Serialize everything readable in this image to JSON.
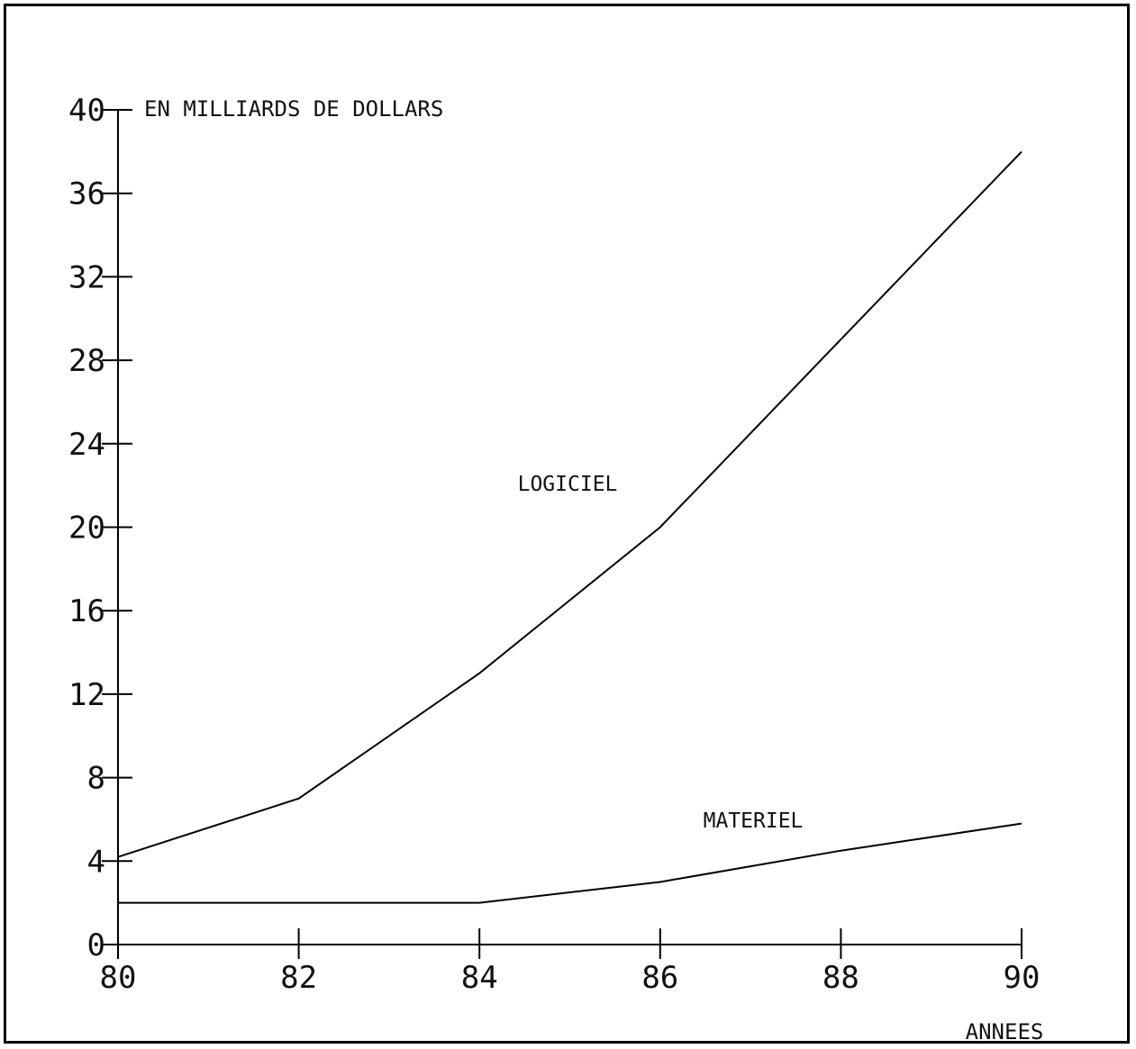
{
  "chart_data": {
    "type": "line",
    "ylabel": "EN MILLIARDS DE DOLLARS",
    "xlabel": "ANNEES",
    "x": [
      80,
      82,
      84,
      86,
      88,
      90
    ],
    "x_ticks": [
      "80",
      "82",
      "84",
      "86",
      "88",
      "90"
    ],
    "y_ticks": [
      "0",
      "4",
      "8",
      "12",
      "16",
      "20",
      "24",
      "28",
      "32",
      "36",
      "40"
    ],
    "xlim": [
      80,
      90
    ],
    "ylim": [
      0,
      40
    ],
    "grid": false,
    "series": [
      {
        "name": "LOGICIEL",
        "x": [
          80,
          82,
          84,
          86,
          88,
          90
        ],
        "values": [
          4.2,
          7,
          13,
          20,
          29,
          38
        ]
      },
      {
        "name": "MATERIEL",
        "x": [
          80,
          82,
          84,
          86,
          88,
          90
        ],
        "values": [
          2,
          2,
          2,
          3,
          4.5,
          5.8
        ]
      }
    ]
  }
}
